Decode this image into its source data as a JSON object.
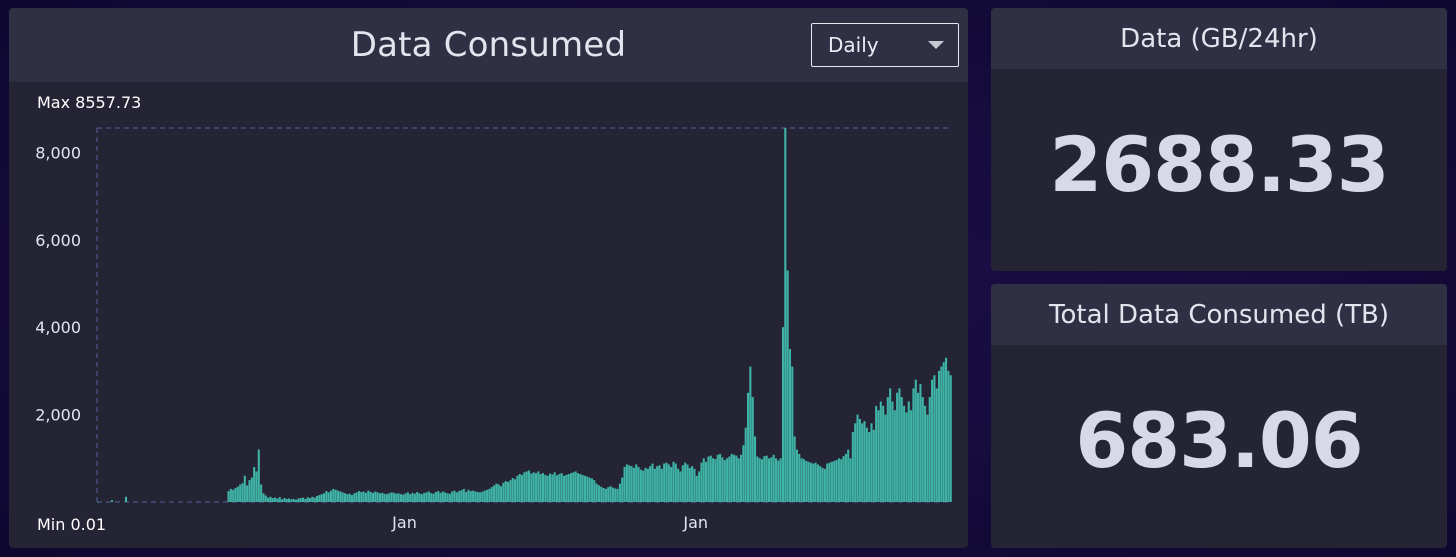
{
  "chart_panel": {
    "title": "Data Consumed",
    "dropdown": {
      "selected": "Daily"
    }
  },
  "stats": [
    {
      "label": "Data (GB/24hr)",
      "value": "2688.33"
    },
    {
      "label": "Total Data Consumed (TB)",
      "value": "683.06"
    }
  ],
  "chart_data": {
    "type": "bar",
    "max_label": "Max 8557.73",
    "min_label": "Min 0.01",
    "yticks": [
      2000,
      4000,
      6000,
      8000
    ],
    "ytick_labels": [
      "2,000",
      "4,000",
      "6,000",
      "8,000"
    ],
    "xtick_labels": [
      "Jan",
      "Jan"
    ],
    "xtick_positions_index": [
      132,
      257
    ],
    "ylim": [
      0,
      8557.73
    ],
    "max_value": 8557.73,
    "min_value": 0.01,
    "bar_color": "#3fb3a6",
    "values": [
      0.01,
      0,
      0,
      0,
      0,
      0,
      40,
      0,
      0,
      0,
      0,
      0,
      120,
      0,
      0,
      0,
      0,
      0,
      0,
      0,
      0,
      0,
      0,
      0,
      0,
      0,
      0,
      0,
      0,
      0,
      0,
      0,
      0,
      0,
      0,
      0,
      0,
      0,
      0,
      0,
      0,
      0,
      0,
      0,
      0,
      0,
      0,
      0,
      0,
      0,
      0,
      0,
      0,
      0,
      0,
      0,
      250,
      300,
      280,
      320,
      350,
      400,
      430,
      600,
      380,
      500,
      560,
      800,
      700,
      1200,
      400,
      200,
      150,
      100,
      120,
      90,
      100,
      80,
      110,
      60,
      90,
      70,
      80,
      60,
      70,
      50,
      80,
      90,
      100,
      70,
      110,
      90,
      120,
      100,
      140,
      160,
      180,
      200,
      250,
      220,
      260,
      300,
      280,
      260,
      240,
      220,
      200,
      180,
      190,
      160,
      200,
      220,
      250,
      230,
      240,
      210,
      260,
      230,
      210,
      240,
      220,
      200,
      210,
      190,
      180,
      200,
      220,
      210,
      190,
      200,
      180,
      170,
      200,
      220,
      180,
      210,
      190,
      230,
      200,
      180,
      210,
      220,
      240,
      200,
      190,
      230,
      250,
      210,
      240,
      220,
      200,
      190,
      240,
      260,
      220,
      250,
      270,
      300,
      230,
      280,
      250,
      260,
      240,
      230,
      220,
      240,
      260,
      280,
      300,
      340,
      380,
      420,
      400,
      360,
      440,
      480,
      460,
      500,
      550,
      520,
      600,
      640,
      620,
      680,
      700,
      720,
      650,
      680,
      660,
      700,
      640,
      660,
      620,
      600,
      650,
      630,
      680,
      610,
      640,
      660,
      600,
      620,
      640,
      660,
      680,
      700,
      660,
      640,
      620,
      600,
      580,
      560,
      540,
      500,
      420,
      380,
      350,
      320,
      300,
      340,
      360,
      330,
      310,
      300,
      420,
      560,
      800,
      860,
      840,
      820,
      780,
      860,
      800,
      740,
      720,
      780,
      760,
      820,
      880,
      760,
      820,
      840,
      760,
      880,
      900,
      860,
      800,
      920,
      880,
      760,
      700,
      840,
      900,
      860,
      780,
      820,
      760,
      600,
      700,
      900,
      1000,
      920,
      1040,
      1060,
      1000,
      980,
      1080,
      1100,
      1020,
      960,
      1000,
      1040,
      1100,
      1080,
      1060,
      1000,
      1080,
      1300,
      1700,
      2500,
      3100,
      2400,
      1500,
      1040,
      1000,
      980,
      1050,
      1060,
      1000,
      1020,
      1080,
      1000,
      950,
      1000,
      4000,
      8557.73,
      5300,
      3500,
      3100,
      1500,
      1200,
      1100,
      1000,
      980,
      940,
      920,
      900,
      880,
      900,
      860,
      820,
      780,
      760,
      880,
      900,
      920,
      940,
      960,
      1000,
      980,
      1050,
      1100,
      1200,
      1000,
      1600,
      1800,
      2000,
      1900,
      1800,
      1850,
      1700,
      1600,
      1800,
      1650,
      2200,
      2100,
      2300,
      2200,
      2000,
      2400,
      2600,
      2300,
      2100,
      2500,
      2600,
      2400,
      2200,
      2050,
      2300,
      2100,
      2600,
      2800,
      2500,
      2700,
      2400,
      2200,
      2000,
      2400,
      2800,
      2900,
      2600,
      3000,
      3100,
      3200,
      3300,
      3000,
      2900
    ]
  }
}
